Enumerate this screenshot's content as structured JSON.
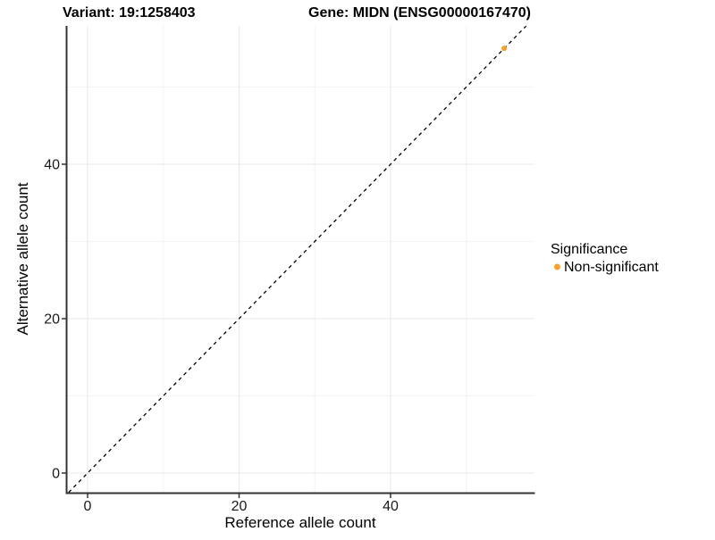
{
  "chart_data": {
    "type": "scatter",
    "title_variant": "Variant: 19:1258403",
    "title_gene": "Gene: MIDN (ENSG00000167470)",
    "xlabel": "Reference allele count",
    "ylabel": "Alternative allele count",
    "xticks": [
      0,
      20,
      40
    ],
    "yticks": [
      0,
      20,
      40
    ],
    "minor_ticks_x": [
      10,
      30,
      50
    ],
    "minor_ticks_y": [
      10,
      30,
      50
    ],
    "xlim": [
      -2.7,
      59.0
    ],
    "ylim": [
      -2.5,
      57.9
    ],
    "grid": true,
    "identity_line": {
      "style": "dashed",
      "equation": "y = x"
    },
    "points": [
      {
        "x": 55,
        "y": 55,
        "series": "Non-significant"
      }
    ],
    "legend": {
      "position": "right",
      "title": "Significance",
      "items": [
        {
          "label": "Non-significant",
          "color": "#F8A02D"
        }
      ]
    },
    "colors": {
      "point": "#F8A02D",
      "axis_line": "#333333",
      "tick_mark": "#333333",
      "grid_major": "#E8E8E8",
      "grid_minor": "#F4F4F4",
      "identity_line": "#000000",
      "background": "#FFFFFF"
    }
  }
}
